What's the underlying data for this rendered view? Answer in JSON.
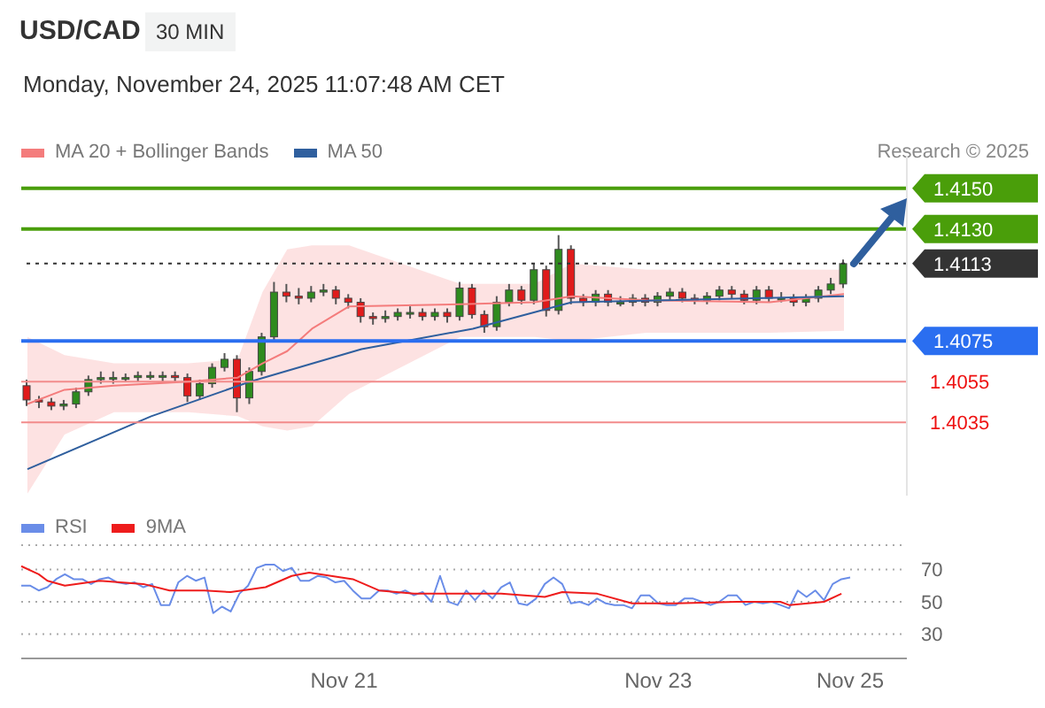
{
  "chart_data": [
    {
      "type": "candlestick",
      "title": "USD/CAD",
      "subtitle": "30 MIN",
      "annotations": [
        "Monday, November 24, 2025 11:07:48 AM CET",
        "Research © 2025"
      ],
      "categories": [
        null,
        null,
        null,
        null,
        null,
        null,
        null,
        null,
        null,
        null,
        null,
        null,
        null,
        null,
        null,
        null,
        null,
        null,
        null,
        null,
        null,
        null,
        null,
        null,
        null,
        null,
        null,
        null,
        null,
        null,
        null,
        null,
        null,
        null,
        null,
        null,
        null,
        null,
        null,
        null,
        null,
        null,
        null,
        null,
        null,
        null,
        null,
        null,
        null,
        null,
        null,
        null,
        null,
        null,
        null,
        null,
        null,
        null,
        null,
        null,
        null,
        null,
        null,
        null,
        null,
        null,
        null
      ],
      "ohlc": [
        [
          1.4053,
          1.4056,
          1.4043,
          1.4046
        ],
        [
          1.4046,
          1.4048,
          1.4042,
          1.4045
        ],
        [
          1.4045,
          1.4047,
          1.4041,
          1.4043
        ],
        [
          1.4043,
          1.4046,
          1.4041,
          1.4044
        ],
        [
          1.4044,
          1.4052,
          1.4042,
          1.405
        ],
        [
          1.405,
          1.4058,
          1.4048,
          1.4056
        ],
        [
          1.4056,
          1.406,
          1.4054,
          1.4057
        ],
        [
          1.4057,
          1.406,
          1.4054,
          1.4057
        ],
        [
          1.4057,
          1.4059,
          1.4055,
          1.4057
        ],
        [
          1.4057,
          1.406,
          1.4055,
          1.4058
        ],
        [
          1.4058,
          1.406,
          1.4056,
          1.4058
        ],
        [
          1.4058,
          1.406,
          1.4055,
          1.4058
        ],
        [
          1.4058,
          1.406,
          1.4055,
          1.4057
        ],
        [
          1.4057,
          1.4059,
          1.4045,
          1.4048
        ],
        [
          1.4048,
          1.4056,
          1.4046,
          1.4054
        ],
        [
          1.4054,
          1.4064,
          1.4052,
          1.4062
        ],
        [
          1.4062,
          1.4069,
          1.406,
          1.4066
        ],
        [
          1.4066,
          1.4068,
          1.404,
          1.4047
        ],
        [
          1.4047,
          1.4062,
          1.4044,
          1.406
        ],
        [
          1.406,
          1.4079,
          1.4058,
          1.4077
        ],
        [
          1.4077,
          1.4104,
          1.4075,
          1.4099
        ],
        [
          1.4099,
          1.4103,
          1.4094,
          1.4097
        ],
        [
          1.4097,
          1.4101,
          1.4093,
          1.4096
        ],
        [
          1.4096,
          1.4102,
          1.4094,
          1.4099
        ],
        [
          1.4099,
          1.4103,
          1.4097,
          1.41
        ],
        [
          1.41,
          1.4102,
          1.4093,
          1.4096
        ],
        [
          1.4096,
          1.4098,
          1.4091,
          1.4094
        ],
        [
          1.4094,
          1.4096,
          1.4084,
          1.4087
        ],
        [
          1.4087,
          1.4089,
          1.4083,
          1.4086
        ],
        [
          1.4086,
          1.409,
          1.4084,
          1.4087
        ],
        [
          1.4087,
          1.4091,
          1.4085,
          1.4089
        ],
        [
          1.4089,
          1.4092,
          1.4086,
          1.4089
        ],
        [
          1.4089,
          1.4091,
          1.4085,
          1.4087
        ],
        [
          1.4087,
          1.4091,
          1.4085,
          1.4089
        ],
        [
          1.4089,
          1.4091,
          1.4084,
          1.4087
        ],
        [
          1.4087,
          1.4104,
          1.4085,
          1.4101
        ],
        [
          1.4101,
          1.4103,
          1.4086,
          1.4088
        ],
        [
          1.4088,
          1.409,
          1.4079,
          1.4082
        ],
        [
          1.4082,
          1.4097,
          1.408,
          1.4094
        ],
        [
          1.4094,
          1.4103,
          1.4092,
          1.41
        ],
        [
          1.41,
          1.4102,
          1.4093,
          1.4095
        ],
        [
          1.4095,
          1.4113,
          1.4093,
          1.411
        ],
        [
          1.411,
          1.4112,
          1.4087,
          1.409
        ],
        [
          1.409,
          1.4127,
          1.4088,
          1.412
        ],
        [
          1.412,
          1.4122,
          1.4093,
          1.4096
        ],
        [
          1.4096,
          1.4098,
          1.4092,
          1.4094
        ],
        [
          1.4094,
          1.41,
          1.4092,
          1.4098
        ],
        [
          1.4098,
          1.41,
          1.4092,
          1.4094
        ],
        [
          1.4094,
          1.4097,
          1.4092,
          1.4094
        ],
        [
          1.4094,
          1.4098,
          1.4092,
          1.4096
        ],
        [
          1.4096,
          1.4098,
          1.4092,
          1.4094
        ],
        [
          1.4094,
          1.4099,
          1.4092,
          1.4097
        ],
        [
          1.4097,
          1.4101,
          1.4095,
          1.4099
        ],
        [
          1.4099,
          1.4101,
          1.4094,
          1.4096
        ],
        [
          1.4096,
          1.4098,
          1.4093,
          1.4095
        ],
        [
          1.4095,
          1.4099,
          1.4093,
          1.4097
        ],
        [
          1.4097,
          1.4102,
          1.4095,
          1.41
        ],
        [
          1.41,
          1.4102,
          1.4096,
          1.4098
        ],
        [
          1.4098,
          1.41,
          1.4093,
          1.4095
        ],
        [
          1.4095,
          1.4102,
          1.4093,
          1.41
        ],
        [
          1.41,
          1.4102,
          1.4094,
          1.4096
        ],
        [
          1.4096,
          1.4099,
          1.4094,
          1.4096
        ],
        [
          1.4096,
          1.4098,
          1.4092,
          1.4094
        ],
        [
          1.4094,
          1.4098,
          1.4092,
          1.4096
        ],
        [
          1.4096,
          1.4102,
          1.4094,
          1.41
        ],
        [
          1.41,
          1.4106,
          1.4098,
          1.4103
        ],
        [
          1.4103,
          1.4115,
          1.4101,
          1.4113
        ]
      ],
      "series": [
        {
          "name": "MA 20 + Bollinger Bands",
          "type": "line",
          "color": "#f47c7c",
          "values": [
            1.4044,
            null,
            null,
            1.4051,
            null,
            null,
            null,
            1.4053,
            null,
            null,
            null,
            null,
            null,
            1.4055,
            null,
            null,
            null,
            1.4057,
            null,
            1.4064,
            null,
            1.407,
            null,
            1.4081,
            null,
            null,
            1.4092,
            null,
            null,
            null,
            null,
            null,
            null,
            null,
            null,
            1.4093,
            null,
            null,
            null,
            null,
            null,
            1.4094,
            null,
            null,
            1.4097,
            null,
            null,
            null,
            null,
            null,
            1.4095,
            null,
            null,
            null,
            null,
            null,
            null,
            null,
            null,
            null,
            1.4094,
            null,
            null,
            null,
            null,
            null,
            1.4098
          ],
          "lower": [
            1.4,
            null,
            null,
            1.4029,
            null,
            null,
            null,
            1.404,
            null,
            null,
            null,
            null,
            null,
            1.404,
            null,
            null,
            null,
            1.4038,
            null,
            1.4033,
            null,
            1.4031,
            null,
            1.4033,
            null,
            null,
            1.4049,
            null,
            null,
            null,
            null,
            null,
            null,
            null,
            null,
            1.4077,
            null,
            null,
            null,
            null,
            null,
            1.4077,
            null,
            null,
            1.4075,
            null,
            null,
            null,
            null,
            null,
            1.4079,
            null,
            null,
            null,
            null,
            null,
            null,
            null,
            null,
            null,
            1.4079,
            null,
            null,
            null,
            null,
            null,
            1.408
          ],
          "upper": [
            1.4077,
            null,
            null,
            1.4068,
            null,
            null,
            null,
            1.4064,
            null,
            null,
            null,
            null,
            null,
            1.4064,
            null,
            null,
            null,
            1.4066,
            null,
            1.4099,
            null,
            1.412,
            null,
            1.4122,
            null,
            null,
            1.4122,
            null,
            null,
            null,
            null,
            null,
            null,
            null,
            null,
            1.4103,
            null,
            null,
            null,
            null,
            null,
            1.4103,
            null,
            null,
            1.4113,
            null,
            null,
            null,
            null,
            null,
            1.411,
            null,
            null,
            null,
            null,
            null,
            null,
            null,
            null,
            null,
            1.411,
            null,
            null,
            null,
            null,
            null,
            1.411
          ]
        },
        {
          "name": "MA 50",
          "type": "line",
          "color": "#2f5f9e",
          "values": [
            1.4012,
            null,
            null,
            null,
            null,
            null,
            null,
            null,
            null,
            null,
            1.4038,
            null,
            null,
            null,
            null,
            null,
            null,
            null,
            1.4055,
            null,
            null,
            null,
            null,
            null,
            null,
            null,
            null,
            1.4071,
            null,
            null,
            null,
            null,
            null,
            null,
            null,
            null,
            1.4081,
            null,
            null,
            null,
            null,
            null,
            null,
            null,
            1.4094,
            null,
            null,
            null,
            null,
            null,
            null,
            null,
            null,
            null,
            null,
            null,
            null,
            null,
            null,
            null,
            null,
            null,
            null,
            null,
            null,
            null,
            1.4097
          ]
        }
      ],
      "tick_labels": "y",
      "legend": "top left",
      "ylim": [
        1.3999,
        1.4166
      ],
      "yticks": [
        {
          "value": 1.415,
          "label": "1.4150"
        },
        {
          "value": 1.413,
          "label": "1.4130"
        },
        1.4113,
        1.4075,
        1.4055,
        1.4035
      ],
      "ref_lines": [
        {
          "axis": "y",
          "value": 1.415,
          "color": "#4a9e0a"
        },
        {
          "axis": "y",
          "value": 1.413,
          "color": "#4a9e0a"
        },
        {
          "axis": "y",
          "value": 1.4113,
          "color": "#333333",
          "line_style": "dotted"
        },
        {
          "axis": "y",
          "value": 1.4075,
          "color": "#2a6ef0"
        },
        {
          "axis": "y",
          "value": 1.4055,
          "color": "#f28b8b"
        },
        {
          "axis": "y",
          "value": 1.4035,
          "color": "#f28b8b"
        }
      ]
    },
    {
      "type": "line",
      "legend": "top left",
      "grid": "y",
      "categories": [
        null,
        null,
        null,
        null,
        null,
        null,
        null,
        null,
        null,
        null,
        null,
        null,
        null,
        null,
        null,
        null,
        null,
        null,
        null,
        null,
        null,
        null,
        null,
        null,
        null,
        null,
        null,
        null,
        null,
        null,
        null,
        null,
        null,
        null,
        null,
        null,
        null,
        "Nov 21",
        null,
        null,
        null,
        null,
        null,
        null,
        null,
        null,
        null,
        null,
        null,
        null,
        null,
        null,
        null,
        null,
        null,
        null,
        null,
        null,
        null,
        null,
        null,
        null,
        null,
        null,
        null,
        null,
        null,
        null,
        null,
        null,
        null,
        null,
        null,
        "Nov 23",
        null,
        null,
        null,
        null,
        null,
        null,
        null,
        null,
        null,
        null,
        null,
        null,
        null,
        null,
        null,
        null,
        null,
        null,
        null,
        null,
        null,
        "Nov 25"
      ],
      "series": [
        {
          "name": "RSI",
          "color": "#6a8de8",
          "values": [
            60,
            60,
            57,
            59,
            64,
            67,
            64,
            64,
            61,
            64,
            65,
            62,
            61,
            62,
            59,
            61,
            48,
            48,
            62,
            66,
            63,
            65,
            43,
            47,
            44,
            55,
            60,
            71,
            73,
            73,
            69,
            71,
            63,
            63,
            66,
            65,
            62,
            63,
            57,
            52,
            52,
            57,
            57,
            55,
            57,
            54,
            56,
            50,
            66,
            50,
            48,
            57,
            51,
            57,
            52,
            59,
            62,
            49,
            48,
            52,
            61,
            65,
            61,
            49,
            50,
            48,
            52,
            49,
            48,
            48,
            46,
            54,
            54,
            49,
            48,
            48,
            52,
            52,
            50,
            48,
            50,
            54,
            54,
            48,
            50,
            49,
            50,
            48,
            46,
            57,
            53,
            57,
            51,
            61,
            64,
            65
          ]
        },
        {
          "name": "9MA",
          "color": "#ee1c1c",
          "values": [
            72,
            null,
            67,
            63,
            null,
            60,
            null,
            null,
            null,
            63,
            null,
            null,
            null,
            null,
            61,
            null,
            null,
            57,
            null,
            null,
            null,
            57,
            null,
            null,
            56,
            null,
            null,
            null,
            59,
            null,
            null,
            66,
            null,
            68,
            null,
            null,
            null,
            null,
            64,
            null,
            null,
            57,
            null,
            null,
            null,
            55,
            null,
            null,
            null,
            55,
            null,
            null,
            null,
            null,
            null,
            55,
            null,
            null,
            null,
            null,
            53,
            null,
            56,
            null,
            null,
            null,
            55,
            null,
            null,
            null,
            49,
            null,
            null,
            null,
            null,
            49,
            null,
            null,
            null,
            null,
            null,
            null,
            50,
            null,
            null,
            null,
            null,
            50,
            48,
            null,
            null,
            null,
            50,
            null,
            55,
            null
          ]
        }
      ],
      "ylim": [
        15,
        85
      ],
      "yticks": [
        30,
        50,
        70
      ]
    }
  ]
}
